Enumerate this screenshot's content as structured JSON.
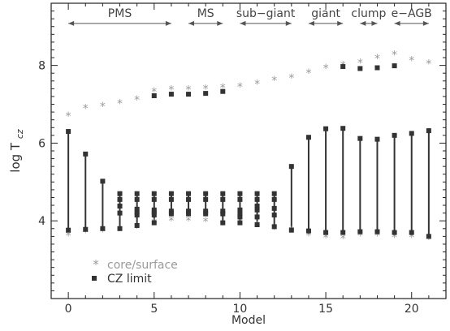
{
  "chart_data": {
    "type": "scatter",
    "xlabel": "Model",
    "ylabel_main": "log T",
    "ylabel_sub": "cz",
    "xlim": [
      -1,
      22
    ],
    "ylim": [
      2.0,
      9.6
    ],
    "xticks": [
      0,
      5,
      10,
      15,
      20
    ],
    "yticks": [
      4,
      6,
      8
    ],
    "phases": [
      {
        "label": "PMS",
        "from": 0,
        "to": 6
      },
      {
        "label": "MS",
        "from": 7,
        "to": 9
      },
      {
        "label": "sub−giant",
        "from": 10,
        "to": 13
      },
      {
        "label": "giant",
        "from": 14,
        "to": 16
      },
      {
        "label": "clump",
        "from": 17,
        "to": 18
      },
      {
        "label": "e−AGB",
        "from": 19,
        "to": 21
      }
    ],
    "legend": {
      "core_surface": "core/surface",
      "cz_limit": "CZ limit"
    },
    "series": [
      {
        "name": "core/surface",
        "marker": "asterisk",
        "color": "#9a9a9a",
        "points": [
          [
            0,
            6.7
          ],
          [
            0,
            3.62
          ],
          [
            1,
            6.9
          ],
          [
            1,
            3.7
          ],
          [
            2,
            6.95
          ],
          [
            2,
            3.72
          ],
          [
            3,
            7.02
          ],
          [
            3,
            3.75
          ],
          [
            4,
            7.12
          ],
          [
            4,
            3.82
          ],
          [
            5,
            7.32
          ],
          [
            5,
            3.95
          ],
          [
            6,
            7.38
          ],
          [
            6,
            4.0
          ],
          [
            7,
            7.38
          ],
          [
            7,
            4.0
          ],
          [
            8,
            7.4
          ],
          [
            8,
            3.98
          ],
          [
            9,
            7.43
          ],
          [
            9,
            3.9
          ],
          [
            10,
            7.45
          ],
          [
            10,
            3.92
          ],
          [
            11,
            7.52
          ],
          [
            11,
            3.88
          ],
          [
            12,
            7.62
          ],
          [
            12,
            3.78
          ],
          [
            13,
            7.68
          ],
          [
            13,
            3.75
          ],
          [
            14,
            7.8
          ],
          [
            14,
            3.62
          ],
          [
            15,
            7.93
          ],
          [
            15,
            3.57
          ],
          [
            16,
            8.0
          ],
          [
            16,
            3.55
          ],
          [
            17,
            8.07
          ],
          [
            17,
            3.62
          ],
          [
            18,
            8.18
          ],
          [
            18,
            3.62
          ],
          [
            19,
            8.27
          ],
          [
            19,
            3.58
          ],
          [
            20,
            8.13
          ],
          [
            20,
            3.58
          ],
          [
            21,
            8.04
          ],
          [
            21,
            3.52
          ]
        ]
      },
      {
        "name": "CZ limit",
        "marker": "square",
        "color": "#333333",
        "points": [
          [
            0,
            6.3
          ],
          [
            0,
            3.76
          ],
          [
            1,
            5.72
          ],
          [
            1,
            3.78
          ],
          [
            2,
            5.02
          ],
          [
            2,
            3.8
          ],
          [
            3,
            4.7
          ],
          [
            3,
            4.55
          ],
          [
            3,
            4.38
          ],
          [
            3,
            4.2
          ],
          [
            3,
            3.8
          ],
          [
            4,
            4.7
          ],
          [
            4,
            4.55
          ],
          [
            4,
            4.3
          ],
          [
            4,
            4.22
          ],
          [
            4,
            4.15
          ],
          [
            4,
            3.88
          ],
          [
            5,
            4.7
          ],
          [
            5,
            4.55
          ],
          [
            5,
            4.28
          ],
          [
            5,
            4.22
          ],
          [
            5,
            4.15
          ],
          [
            5,
            3.95
          ],
          [
            6,
            4.7
          ],
          [
            6,
            4.55
          ],
          [
            6,
            4.25
          ],
          [
            6,
            4.18
          ],
          [
            7,
            4.7
          ],
          [
            7,
            4.55
          ],
          [
            7,
            4.25
          ],
          [
            7,
            4.18
          ],
          [
            8,
            4.7
          ],
          [
            8,
            4.55
          ],
          [
            8,
            4.25
          ],
          [
            8,
            4.18
          ],
          [
            9,
            4.7
          ],
          [
            9,
            4.55
          ],
          [
            9,
            4.25
          ],
          [
            9,
            4.18
          ],
          [
            9,
            3.95
          ],
          [
            10,
            4.7
          ],
          [
            10,
            4.55
          ],
          [
            10,
            4.28
          ],
          [
            10,
            4.18
          ],
          [
            10,
            4.1
          ],
          [
            10,
            3.95
          ],
          [
            11,
            4.7
          ],
          [
            11,
            4.55
          ],
          [
            11,
            4.38
          ],
          [
            11,
            4.28
          ],
          [
            11,
            4.1
          ],
          [
            11,
            3.9
          ],
          [
            12,
            4.7
          ],
          [
            12,
            4.55
          ],
          [
            12,
            4.32
          ],
          [
            12,
            4.15
          ],
          [
            12,
            3.85
          ],
          [
            13,
            5.4
          ],
          [
            13,
            3.76
          ],
          [
            14,
            6.15
          ],
          [
            14,
            3.74
          ],
          [
            15,
            6.37
          ],
          [
            15,
            3.7
          ],
          [
            16,
            6.38
          ],
          [
            16,
            3.7
          ],
          [
            17,
            6.12
          ],
          [
            17,
            3.72
          ],
          [
            18,
            6.1
          ],
          [
            18,
            3.72
          ],
          [
            19,
            6.2
          ],
          [
            19,
            3.7
          ],
          [
            20,
            6.25
          ],
          [
            20,
            3.7
          ],
          [
            21,
            6.32
          ],
          [
            21,
            3.6
          ],
          [
            5,
            7.22
          ],
          [
            6,
            7.26
          ],
          [
            7,
            7.26
          ],
          [
            8,
            7.28
          ],
          [
            9,
            7.33
          ],
          [
            16,
            7.97
          ],
          [
            17,
            7.92
          ],
          [
            18,
            7.94
          ],
          [
            19,
            7.99
          ]
        ]
      }
    ],
    "cz_spans": [
      {
        "x": 0,
        "from": 3.76,
        "to": 6.3
      },
      {
        "x": 1,
        "from": 3.78,
        "to": 5.72
      },
      {
        "x": 2,
        "from": 3.8,
        "to": 5.02
      },
      {
        "x": 3,
        "from": 3.8,
        "to": 4.7
      },
      {
        "x": 4,
        "from": 3.88,
        "to": 4.7
      },
      {
        "x": 5,
        "from": 3.95,
        "to": 4.7
      },
      {
        "x": 6,
        "from": 4.18,
        "to": 4.7
      },
      {
        "x": 7,
        "from": 4.18,
        "to": 4.7
      },
      {
        "x": 8,
        "from": 4.18,
        "to": 4.7
      },
      {
        "x": 9,
        "from": 3.95,
        "to": 4.7
      },
      {
        "x": 10,
        "from": 3.95,
        "to": 4.7
      },
      {
        "x": 11,
        "from": 3.9,
        "to": 4.7
      },
      {
        "x": 12,
        "from": 3.85,
        "to": 4.7
      },
      {
        "x": 13,
        "from": 3.76,
        "to": 5.4
      },
      {
        "x": 14,
        "from": 3.74,
        "to": 6.15
      },
      {
        "x": 15,
        "from": 3.7,
        "to": 6.37
      },
      {
        "x": 16,
        "from": 3.7,
        "to": 6.38
      },
      {
        "x": 17,
        "from": 3.72,
        "to": 6.12
      },
      {
        "x": 18,
        "from": 3.72,
        "to": 6.1
      },
      {
        "x": 19,
        "from": 3.7,
        "to": 6.2
      },
      {
        "x": 20,
        "from": 3.7,
        "to": 6.25
      },
      {
        "x": 21,
        "from": 3.6,
        "to": 6.32
      }
    ]
  }
}
